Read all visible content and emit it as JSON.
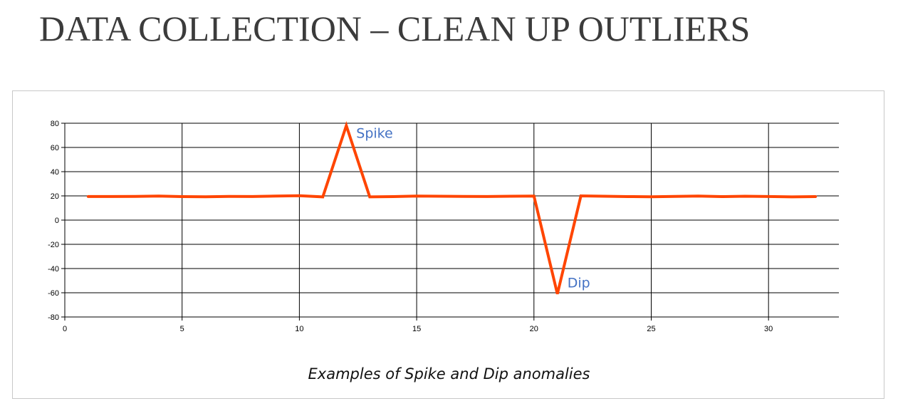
{
  "slide": {
    "title": "DATA COLLECTION – CLEAN UP OUTLIERS"
  },
  "chart_data": {
    "type": "line",
    "caption": "Examples of Spike and Dip anomalies",
    "xlim": [
      0,
      33
    ],
    "ylim": [
      -80,
      80
    ],
    "x_ticks": [
      0,
      5,
      10,
      15,
      20,
      25,
      30
    ],
    "y_ticks": [
      80,
      60,
      40,
      20,
      0,
      -20,
      -40,
      -60,
      -80
    ],
    "grid": true,
    "line_color": "#ff4500",
    "annotation_color": "#4472c4",
    "series": [
      {
        "x": [
          1,
          2,
          3,
          4,
          5,
          6,
          7,
          8,
          9,
          10,
          11,
          12,
          13,
          14,
          15,
          16,
          17,
          18,
          19,
          20,
          21,
          22,
          23,
          24,
          25,
          26,
          27,
          28,
          29,
          30,
          31,
          32
        ],
        "values": [
          19.5,
          19.5,
          19.6,
          19.8,
          19.4,
          19.3,
          19.6,
          19.5,
          19.9,
          20.1,
          19.2,
          78,
          19.2,
          19.4,
          19.8,
          19.7,
          19.6,
          19.5,
          19.7,
          19.8,
          -61,
          20,
          19.7,
          19.4,
          19.3,
          19.6,
          19.8,
          19.4,
          19.7,
          19.5,
          19.2,
          19.4
        ]
      }
    ],
    "annotations": [
      {
        "text": "Spike",
        "x": 12,
        "y": 78,
        "anchor": "right"
      },
      {
        "text": "Dip",
        "x": 21,
        "y": -61,
        "anchor": "right"
      }
    ]
  }
}
